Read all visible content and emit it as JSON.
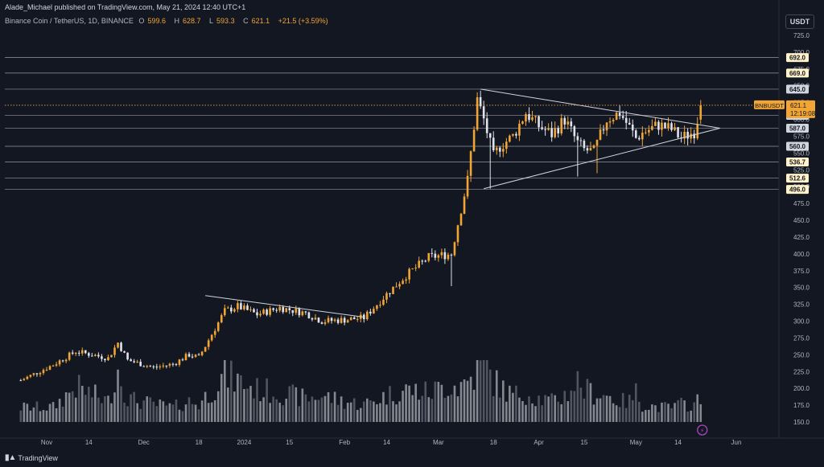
{
  "header": {
    "published": "Alade_Michael published on TradingView.com, May 21, 2024 12:40 UTC+1",
    "symbol": "Binance Coin / TetherUS, 1D, BINANCE",
    "o_label": "O",
    "o_value": "599.6",
    "h_label": "H",
    "h_value": "628.7",
    "l_label": "L",
    "l_value": "593.3",
    "c_label": "C",
    "c_value": "621.1",
    "change": "+21.5 (+3.59%)",
    "currency": "USDT"
  },
  "footer": {
    "brand": "TradingView"
  },
  "colors": {
    "bg": "#131722",
    "up": "#f0a534",
    "down": "#e0e3eb",
    "grid_line": "#9598a1",
    "accent": "#f0a534",
    "volume": "#787b86"
  },
  "chart_data": {
    "type": "candlestick",
    "price_axis": {
      "ticks": [
        725.0,
        700.0,
        675.0,
        650.0,
        625.0,
        600.0,
        575.0,
        550.0,
        525.0,
        500.0,
        475.0,
        450.0,
        425.0,
        400.0,
        375.0,
        350.0,
        325.0,
        300.0,
        275.0,
        250.0,
        225.0,
        200.0,
        175.0,
        150.0
      ],
      "tick_labels": [
        "725.0",
        "700.0",
        "675.0",
        "650.0",
        "625.0",
        "600.0",
        "575.0",
        "550.0",
        "525.0",
        "500.0",
        "475.0",
        "450.0",
        "425.0",
        "400.0",
        "375.0",
        "350.0",
        "325.0",
        "300.0",
        "275.0",
        "250.0",
        "225.0",
        "200.0",
        "175.0",
        "150.0"
      ],
      "range": [
        137,
        745
      ]
    },
    "time_axis": {
      "labels": [
        "Nov",
        "14",
        "Dec",
        "18",
        "2024",
        "15",
        "Feb",
        "14",
        "Mar",
        "18",
        "Apr",
        "15",
        "May",
        "14",
        "Jun"
      ],
      "dates": [
        "2023-11-01",
        "2023-11-14",
        "2023-12-01",
        "2023-12-18",
        "2024-01-01",
        "2024-01-15",
        "2024-02-01",
        "2024-02-14",
        "2024-03-01",
        "2024-03-18",
        "2024-04-01",
        "2024-04-15",
        "2024-05-01",
        "2024-05-14",
        "2024-06-01"
      ],
      "range": [
        "2023-10-24",
        "2024-06-10"
      ]
    },
    "levels": [
      {
        "value": 692.0,
        "label": "692.0"
      },
      {
        "value": 669.0,
        "label": "669.0"
      },
      {
        "value": 645.0,
        "label": "645.0"
      },
      {
        "value": 606.0,
        "label": "606.0"
      },
      {
        "value": 587.0,
        "label": "587.0"
      },
      {
        "value": 560.0,
        "label": "560.0"
      },
      {
        "value": 536.7,
        "label": "536.7"
      },
      {
        "value": 512.6,
        "label": "512.6"
      },
      {
        "value": 496.0,
        "label": "496.0"
      }
    ],
    "current": {
      "symbol_tag": "BNBUSDT",
      "price": 621.1,
      "price_label": "621.1",
      "countdown": "12:19:08"
    },
    "trendlines": [
      {
        "from": [
          "2023-12-20",
          338
        ],
        "to": [
          "2024-02-07",
          306
        ]
      },
      {
        "from": [
          "2024-03-14",
          645
        ],
        "to": [
          "2024-05-27",
          587
        ]
      },
      {
        "from": [
          "2024-03-15",
          497
        ],
        "to": [
          "2024-05-27",
          587
        ]
      }
    ],
    "anchors": [
      [
        "2023-10-24",
        212,
        0.25
      ],
      [
        "2023-11-03",
        235,
        0.25
      ],
      [
        "2023-11-10",
        255,
        0.6
      ],
      [
        "2023-11-20",
        245,
        0.35
      ],
      [
        "2023-11-23",
        268,
        0.9
      ],
      [
        "2023-11-26",
        242,
        0.4
      ],
      [
        "2023-12-04",
        231,
        0.3
      ],
      [
        "2023-12-10",
        236,
        0.25
      ],
      [
        "2023-12-15",
        250,
        0.35
      ],
      [
        "2023-12-18",
        246,
        0.3
      ],
      [
        "2023-12-26",
        315,
        0.8
      ],
      [
        "2023-12-30",
        322,
        0.7
      ],
      [
        "2024-01-05",
        310,
        0.55
      ],
      [
        "2024-01-12",
        320,
        0.5
      ],
      [
        "2024-01-20",
        312,
        0.4
      ],
      [
        "2024-01-25",
        300,
        0.45
      ],
      [
        "2024-02-01",
        302,
        0.35
      ],
      [
        "2024-02-07",
        305,
        0.3
      ],
      [
        "2024-02-14",
        340,
        0.45
      ],
      [
        "2024-02-20",
        368,
        0.55
      ],
      [
        "2024-02-27",
        395,
        0.5
      ],
      [
        "2024-03-05",
        400,
        0.65
      ],
      [
        "2024-03-07",
        445,
        0.6
      ],
      [
        "2024-03-10",
        510,
        0.7
      ],
      [
        "2024-03-13",
        630,
        0.85
      ],
      [
        "2024-03-15",
        600,
        1.0
      ],
      [
        "2024-03-18",
        545,
        0.7
      ],
      [
        "2024-03-20",
        560,
        0.6
      ],
      [
        "2024-03-24",
        575,
        0.45
      ],
      [
        "2024-03-28",
        610,
        0.5
      ],
      [
        "2024-04-01",
        590,
        0.4
      ],
      [
        "2024-04-05",
        578,
        0.35
      ],
      [
        "2024-04-09",
        600,
        0.45
      ],
      [
        "2024-04-13",
        565,
        0.7
      ],
      [
        "2024-04-15",
        555,
        0.55
      ],
      [
        "2024-04-18",
        552,
        0.5
      ],
      [
        "2024-04-22",
        600,
        0.45
      ],
      [
        "2024-04-26",
        610,
        0.35
      ],
      [
        "2024-04-29",
        588,
        0.35
      ],
      [
        "2024-05-01",
        572,
        0.5
      ],
      [
        "2024-05-03",
        580,
        0.3
      ],
      [
        "2024-05-08",
        592,
        0.25
      ],
      [
        "2024-05-12",
        585,
        0.25
      ],
      [
        "2024-05-15",
        572,
        0.3
      ],
      [
        "2024-05-19",
        582,
        0.3
      ],
      [
        "2024-05-20",
        599.6,
        0.35
      ],
      [
        "2024-05-21",
        621.1,
        0.3
      ]
    ],
    "last_candle": {
      "date": "2024-05-21",
      "o": 599.6,
      "h": 628.7,
      "l": 593.3,
      "c": 621.1
    }
  }
}
